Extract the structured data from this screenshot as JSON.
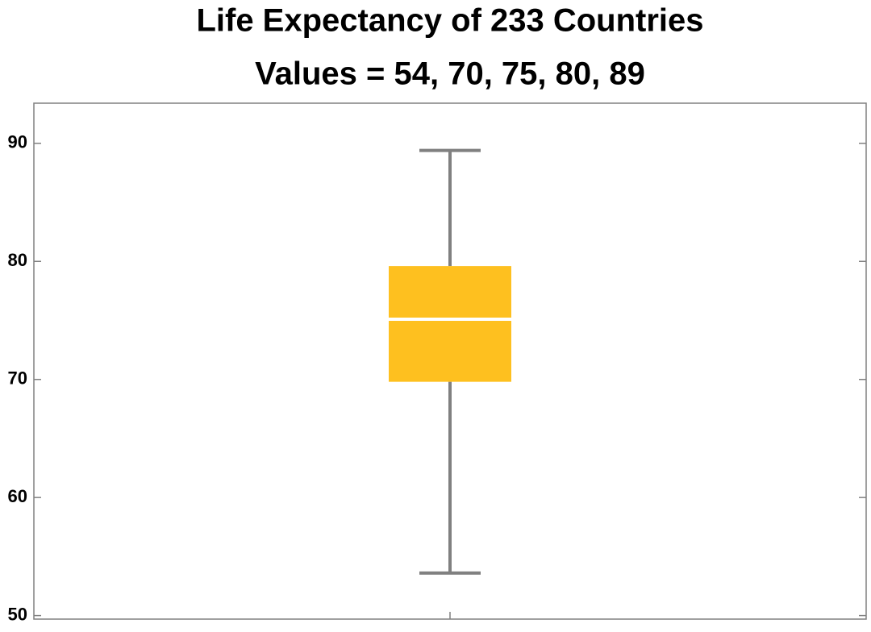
{
  "chart_data": {
    "type": "box",
    "title": "Life Expectancy of 233 Countries",
    "subtitle": "Values = 54, 70, 75, 80, 89",
    "categories": [
      null
    ],
    "min": [
      53.6
    ],
    "q1": [
      69.8
    ],
    "median": [
      75.1
    ],
    "q3": [
      79.6
    ],
    "max": [
      89.4
    ],
    "color": "#fec01f",
    "whisker_color": "#808080",
    "median_color": "#ffffff",
    "ylim": [
      49.7,
      93.4
    ],
    "yticks": [
      50,
      60,
      70,
      80,
      90
    ]
  }
}
